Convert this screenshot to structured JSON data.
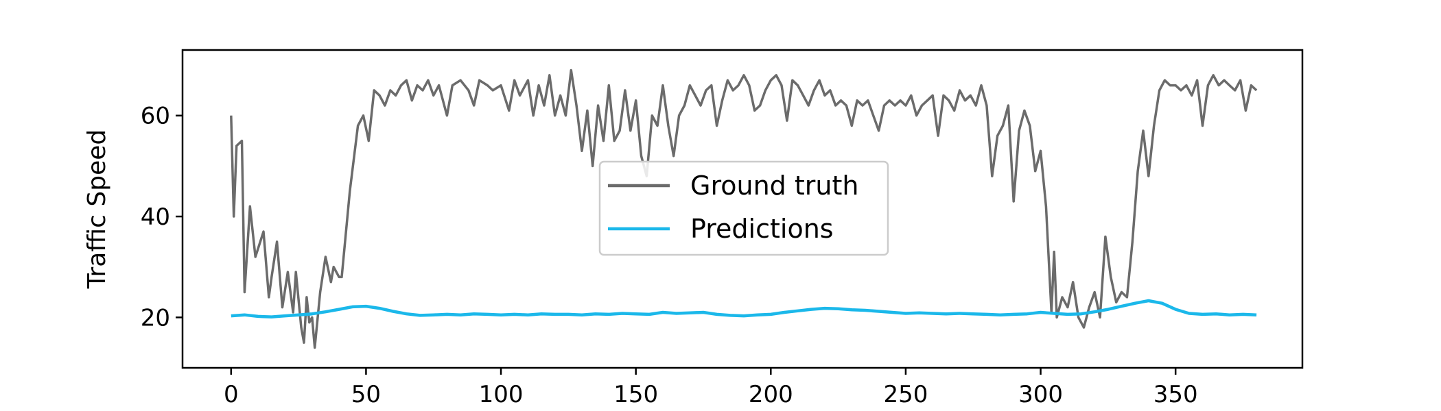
{
  "chart_data": {
    "type": "line",
    "title": "",
    "xlabel": "",
    "ylabel": "Traffic Speed",
    "xlim": [
      -18,
      397
    ],
    "ylim": [
      10,
      73
    ],
    "xticks": [
      0,
      50,
      100,
      150,
      200,
      250,
      300,
      350
    ],
    "yticks": [
      20,
      40,
      60
    ],
    "grid": false,
    "legend_position": "center",
    "series": [
      {
        "name": "Ground truth",
        "color": "#6b6b6b",
        "points": [
          [
            0,
            60
          ],
          [
            1,
            40
          ],
          [
            2,
            54
          ],
          [
            4,
            55
          ],
          [
            5,
            25
          ],
          [
            7,
            42
          ],
          [
            9,
            32
          ],
          [
            12,
            37
          ],
          [
            14,
            24
          ],
          [
            15,
            28
          ],
          [
            17,
            35
          ],
          [
            19,
            22
          ],
          [
            21,
            29
          ],
          [
            23,
            21
          ],
          [
            24,
            29
          ],
          [
            26,
            18
          ],
          [
            27,
            15
          ],
          [
            28,
            24
          ],
          [
            29,
            19
          ],
          [
            30,
            20
          ],
          [
            31,
            14
          ],
          [
            33,
            25
          ],
          [
            35,
            32
          ],
          [
            37,
            27
          ],
          [
            38,
            30
          ],
          [
            40,
            28
          ],
          [
            41,
            28
          ],
          [
            44,
            45
          ],
          [
            47,
            58
          ],
          [
            49,
            60
          ],
          [
            51,
            55
          ],
          [
            53,
            65
          ],
          [
            55,
            64
          ],
          [
            57,
            62
          ],
          [
            59,
            65
          ],
          [
            61,
            64
          ],
          [
            63,
            66
          ],
          [
            65,
            67
          ],
          [
            67,
            63
          ],
          [
            69,
            66
          ],
          [
            71,
            65
          ],
          [
            73,
            67
          ],
          [
            75,
            64
          ],
          [
            77,
            66
          ],
          [
            80,
            60
          ],
          [
            82,
            66
          ],
          [
            85,
            67
          ],
          [
            88,
            65
          ],
          [
            90,
            62
          ],
          [
            92,
            67
          ],
          [
            95,
            66
          ],
          [
            97,
            65
          ],
          [
            100,
            66
          ],
          [
            103,
            61
          ],
          [
            105,
            67
          ],
          [
            107,
            64
          ],
          [
            110,
            67
          ],
          [
            112,
            60
          ],
          [
            114,
            66
          ],
          [
            116,
            62
          ],
          [
            118,
            68
          ],
          [
            120,
            60
          ],
          [
            122,
            64
          ],
          [
            124,
            60
          ],
          [
            126,
            69
          ],
          [
            128,
            62
          ],
          [
            130,
            53
          ],
          [
            132,
            61
          ],
          [
            134,
            50
          ],
          [
            136,
            62
          ],
          [
            138,
            55
          ],
          [
            140,
            66
          ],
          [
            142,
            55
          ],
          [
            144,
            57
          ],
          [
            146,
            65
          ],
          [
            148,
            57
          ],
          [
            150,
            63
          ],
          [
            152,
            52
          ],
          [
            154,
            48
          ],
          [
            156,
            60
          ],
          [
            158,
            58
          ],
          [
            160,
            66
          ],
          [
            162,
            58
          ],
          [
            164,
            52
          ],
          [
            166,
            60
          ],
          [
            168,
            62
          ],
          [
            170,
            66
          ],
          [
            172,
            64
          ],
          [
            174,
            62
          ],
          [
            176,
            65
          ],
          [
            178,
            66
          ],
          [
            180,
            58
          ],
          [
            182,
            63
          ],
          [
            184,
            67
          ],
          [
            186,
            65
          ],
          [
            188,
            66
          ],
          [
            190,
            68
          ],
          [
            192,
            66
          ],
          [
            194,
            61
          ],
          [
            196,
            62
          ],
          [
            198,
            65
          ],
          [
            200,
            67
          ],
          [
            202,
            68
          ],
          [
            204,
            66
          ],
          [
            206,
            59
          ],
          [
            208,
            67
          ],
          [
            210,
            66
          ],
          [
            212,
            64
          ],
          [
            214,
            62
          ],
          [
            216,
            65
          ],
          [
            218,
            67
          ],
          [
            220,
            64
          ],
          [
            222,
            65
          ],
          [
            224,
            62
          ],
          [
            226,
            63
          ],
          [
            228,
            62
          ],
          [
            230,
            58
          ],
          [
            232,
            63
          ],
          [
            234,
            62
          ],
          [
            236,
            63
          ],
          [
            238,
            60
          ],
          [
            240,
            57
          ],
          [
            242,
            62
          ],
          [
            244,
            63
          ],
          [
            246,
            62
          ],
          [
            248,
            63
          ],
          [
            250,
            62
          ],
          [
            252,
            64
          ],
          [
            254,
            60
          ],
          [
            256,
            62
          ],
          [
            258,
            63
          ],
          [
            260,
            64
          ],
          [
            262,
            56
          ],
          [
            264,
            64
          ],
          [
            266,
            63
          ],
          [
            268,
            61
          ],
          [
            270,
            65
          ],
          [
            272,
            63
          ],
          [
            274,
            64
          ],
          [
            276,
            62
          ],
          [
            278,
            66
          ],
          [
            280,
            62
          ],
          [
            282,
            48
          ],
          [
            284,
            56
          ],
          [
            286,
            58
          ],
          [
            288,
            62
          ],
          [
            290,
            43
          ],
          [
            292,
            57
          ],
          [
            294,
            61
          ],
          [
            296,
            58
          ],
          [
            298,
            49
          ],
          [
            300,
            53
          ],
          [
            302,
            42
          ],
          [
            304,
            21
          ],
          [
            305,
            33
          ],
          [
            306,
            20
          ],
          [
            308,
            24
          ],
          [
            310,
            22
          ],
          [
            312,
            27
          ],
          [
            314,
            20
          ],
          [
            316,
            18
          ],
          [
            318,
            22
          ],
          [
            320,
            25
          ],
          [
            322,
            20
          ],
          [
            324,
            36
          ],
          [
            326,
            28
          ],
          [
            328,
            23
          ],
          [
            330,
            25
          ],
          [
            332,
            24
          ],
          [
            334,
            35
          ],
          [
            336,
            49
          ],
          [
            338,
            57
          ],
          [
            340,
            48
          ],
          [
            342,
            58
          ],
          [
            344,
            65
          ],
          [
            346,
            67
          ],
          [
            348,
            66
          ],
          [
            350,
            66
          ],
          [
            352,
            65
          ],
          [
            354,
            66
          ],
          [
            356,
            64
          ],
          [
            358,
            67
          ],
          [
            360,
            58
          ],
          [
            362,
            66
          ],
          [
            364,
            68
          ],
          [
            366,
            66
          ],
          [
            368,
            67
          ],
          [
            370,
            66
          ],
          [
            372,
            65
          ],
          [
            374,
            67
          ],
          [
            376,
            61
          ],
          [
            378,
            66
          ],
          [
            380,
            65
          ]
        ]
      },
      {
        "name": "Predictions",
        "color": "#1bb8ea",
        "points": [
          [
            0,
            20.3
          ],
          [
            5,
            20.5
          ],
          [
            10,
            20.2
          ],
          [
            15,
            20.1
          ],
          [
            20,
            20.3
          ],
          [
            25,
            20.5
          ],
          [
            30,
            20.7
          ],
          [
            35,
            21.1
          ],
          [
            40,
            21.6
          ],
          [
            45,
            22.1
          ],
          [
            50,
            22.2
          ],
          [
            55,
            21.8
          ],
          [
            60,
            21.2
          ],
          [
            65,
            20.7
          ],
          [
            70,
            20.4
          ],
          [
            75,
            20.5
          ],
          [
            80,
            20.6
          ],
          [
            85,
            20.5
          ],
          [
            90,
            20.7
          ],
          [
            95,
            20.6
          ],
          [
            100,
            20.5
          ],
          [
            105,
            20.6
          ],
          [
            110,
            20.5
          ],
          [
            115,
            20.7
          ],
          [
            120,
            20.6
          ],
          [
            125,
            20.6
          ],
          [
            130,
            20.5
          ],
          [
            135,
            20.7
          ],
          [
            140,
            20.6
          ],
          [
            145,
            20.8
          ],
          [
            150,
            20.7
          ],
          [
            155,
            20.6
          ],
          [
            160,
            21
          ],
          [
            165,
            20.8
          ],
          [
            170,
            20.9
          ],
          [
            175,
            21
          ],
          [
            180,
            20.6
          ],
          [
            185,
            20.4
          ],
          [
            190,
            20.3
          ],
          [
            195,
            20.5
          ],
          [
            200,
            20.6
          ],
          [
            205,
            21
          ],
          [
            210,
            21.3
          ],
          [
            215,
            21.6
          ],
          [
            220,
            21.8
          ],
          [
            225,
            21.7
          ],
          [
            230,
            21.5
          ],
          [
            235,
            21.4
          ],
          [
            240,
            21.2
          ],
          [
            245,
            21
          ],
          [
            250,
            20.8
          ],
          [
            255,
            20.9
          ],
          [
            260,
            20.8
          ],
          [
            265,
            20.7
          ],
          [
            270,
            20.8
          ],
          [
            275,
            20.7
          ],
          [
            280,
            20.6
          ],
          [
            285,
            20.5
          ],
          [
            290,
            20.6
          ],
          [
            295,
            20.7
          ],
          [
            300,
            21
          ],
          [
            305,
            20.8
          ],
          [
            310,
            20.6
          ],
          [
            315,
            20.7
          ],
          [
            320,
            21.1
          ],
          [
            325,
            21.6
          ],
          [
            330,
            22.2
          ],
          [
            335,
            22.8
          ],
          [
            340,
            23.3
          ],
          [
            345,
            22.8
          ],
          [
            350,
            21.6
          ],
          [
            355,
            20.8
          ],
          [
            360,
            20.6
          ],
          [
            365,
            20.7
          ],
          [
            370,
            20.5
          ],
          [
            375,
            20.6
          ],
          [
            380,
            20.5
          ]
        ]
      }
    ]
  }
}
